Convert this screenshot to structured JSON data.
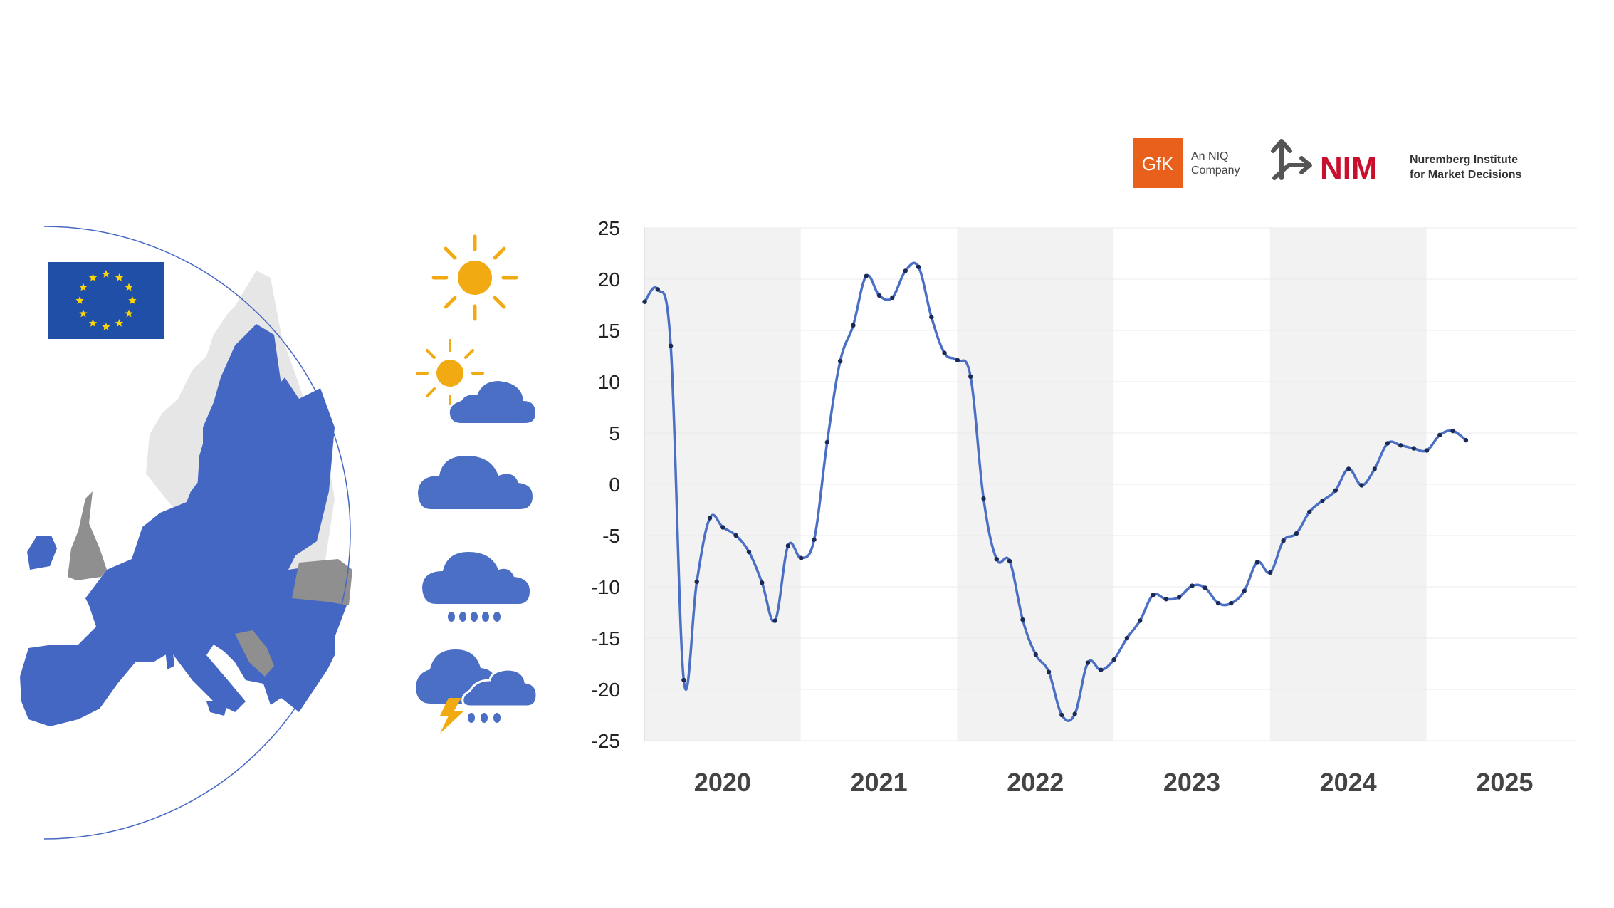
{
  "logos": {
    "gfk": {
      "mark": "GfK",
      "line1": "An NIQ",
      "line2": "Company",
      "color": "#e8601c"
    },
    "nim": {
      "mark": "NIM",
      "line1": "Nuremberg Institute",
      "line2": "for Market Decisions",
      "color": "#c8102e"
    }
  },
  "icons": [
    "eu-flag-icon",
    "sun-icon",
    "sun-behind-cloud-icon",
    "cloud-icon",
    "rain-cloud-icon",
    "thunderstorm-icon"
  ],
  "colors": {
    "series": "#4a6fc4",
    "map_eu": "#4567c4",
    "map_grey": "#8f8f8f",
    "map_light": "#e6e6e6",
    "sun": "#f2aa13",
    "cloud": "#4a6fc4",
    "band": "#f2f2f2",
    "eu_flag_blue": "#1f4fa6",
    "eu_flag_star": "#ffd400"
  },
  "chart_data": {
    "type": "line",
    "title": "",
    "xlabel": "",
    "ylabel": "",
    "ylim": [
      -25,
      25
    ],
    "y_ticks": [
      "25",
      "20",
      "15",
      "10",
      "5",
      "0",
      "-5",
      "-10",
      "-15",
      "-20",
      "-25"
    ],
    "year_labels": [
      "2020",
      "2021",
      "2022",
      "2023",
      "2024",
      "2025"
    ],
    "shaded_years": [
      "2020",
      "2022",
      "2024"
    ],
    "grid": true,
    "x_months": [
      "2020-01",
      "2020-02",
      "2020-03",
      "2020-04",
      "2020-05",
      "2020-06",
      "2020-07",
      "2020-08",
      "2020-09",
      "2020-10",
      "2020-11",
      "2020-12",
      "2021-01",
      "2021-02",
      "2021-03",
      "2021-04",
      "2021-05",
      "2021-06",
      "2021-07",
      "2021-08",
      "2021-09",
      "2021-10",
      "2021-11",
      "2021-12",
      "2022-01",
      "2022-02",
      "2022-03",
      "2022-04",
      "2022-05",
      "2022-06",
      "2022-07",
      "2022-08",
      "2022-09",
      "2022-10",
      "2022-11",
      "2022-12",
      "2023-01",
      "2023-02",
      "2023-03",
      "2023-04",
      "2023-05",
      "2023-06",
      "2023-07",
      "2023-08",
      "2023-09",
      "2023-10",
      "2023-11",
      "2023-12",
      "2024-01",
      "2024-02",
      "2024-03",
      "2024-04",
      "2024-05",
      "2024-06",
      "2024-07",
      "2024-08",
      "2024-09",
      "2024-10",
      "2024-11",
      "2024-12",
      "2025-01",
      "2025-02",
      "2025-03",
      "2025-04"
    ],
    "series": [
      {
        "values": [
          17.8,
          19.0,
          13.5,
          -19.1,
          -9.5,
          -3.3,
          -4.2,
          -5.0,
          -6.6,
          -9.6,
          -13.3,
          -6.0,
          -7.2,
          -5.4,
          4.1,
          12.0,
          15.5,
          20.3,
          18.4,
          18.2,
          20.8,
          21.2,
          16.3,
          12.8,
          12.1,
          10.5,
          -1.4,
          -7.3,
          -7.5,
          -13.2,
          -16.6,
          -18.3,
          -22.5,
          -22.4,
          -17.4,
          -18.1,
          -17.1,
          -15.0,
          -13.3,
          -10.8,
          -11.2,
          -11.0,
          -9.9,
          -10.1,
          -11.6,
          -11.6,
          -10.4,
          -7.6,
          -8.6,
          -5.5,
          -4.8,
          -2.7,
          -1.6,
          -0.6,
          1.5,
          -0.1,
          1.5,
          4.0,
          3.8,
          3.5,
          3.3,
          4.8,
          5.2,
          4.3
        ]
      }
    ]
  }
}
